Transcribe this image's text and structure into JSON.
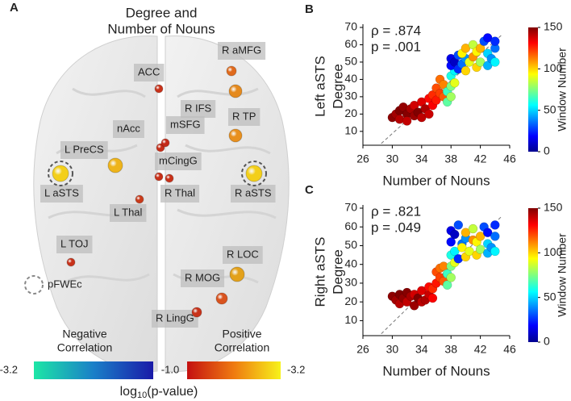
{
  "brain": {
    "panel_label": "A",
    "title_lines": [
      "Degree and",
      "Number of Nouns"
    ],
    "nodes": [
      {
        "label": "R aMFG",
        "color": "#e06a1c"
      },
      {
        "label": "ACC",
        "color": "#c8321a"
      },
      {
        "label": "R IFS",
        "color": "#e58a1e"
      },
      {
        "label": "nAcc",
        "color": "#c62d18"
      },
      {
        "label": "mSFG",
        "color": "#c42a18"
      },
      {
        "label": "R TP",
        "color": "#e8901e"
      },
      {
        "label": "L PreCS",
        "color": "#eeb41a",
        "pfwe": false
      },
      {
        "label": "mCingG",
        "color": "#c83018"
      },
      {
        "label": "L aSTS",
        "color": "#f3cf1a",
        "pfwe": true
      },
      {
        "label": "R aSTS",
        "color": "#f3cf1a",
        "pfwe": true
      },
      {
        "label": "R Thal",
        "color": "#c83018"
      },
      {
        "label": "L Thal",
        "color": "#c93a1a"
      },
      {
        "label": "L TOJ",
        "color": "#c8321a"
      },
      {
        "label": "R LOC",
        "color": "#e3a11a"
      },
      {
        "label": "R MOG",
        "color": "#d9531e"
      },
      {
        "label": "R LingG",
        "color": "#c8321a"
      }
    ],
    "pfwe_legend": "pFWEc",
    "colorbar": {
      "negative_lines": [
        "Negative",
        "Correlation"
      ],
      "positive_lines": [
        "Positive",
        "Correlation"
      ],
      "tick_labels": [
        "-3.2",
        "-1.0",
        "-3.2"
      ],
      "label_parts": [
        "log",
        "10",
        "(p-value)"
      ]
    }
  },
  "chart_data": [
    {
      "type": "scatter",
      "panel_label": "B",
      "ylabel_lines": [
        "Left aSTS",
        "Degree"
      ],
      "xlabel": "Number of Nouns",
      "annotations": [
        "ρ = .874",
        "p = .001"
      ],
      "xlim": [
        26,
        46
      ],
      "xticks": [
        26,
        30,
        34,
        38,
        42,
        46
      ],
      "ylim": [
        2,
        70
      ],
      "yticks": [
        10,
        20,
        30,
        40,
        50,
        60,
        70
      ],
      "fit_line": {
        "x": [
          28.5,
          45
        ],
        "y": [
          3,
          66
        ]
      },
      "colorbar_label": "Window Number",
      "clim": [
        0,
        150
      ],
      "cticks": [
        0,
        50,
        100,
        150
      ],
      "colormap": "jet",
      "x": [
        30,
        30.5,
        31,
        31,
        31.5,
        32,
        32,
        32.5,
        33,
        33,
        33.5,
        34,
        34,
        34.5,
        35,
        35,
        35.5,
        35.5,
        36,
        36,
        36.5,
        36.5,
        37,
        37,
        37.5,
        37.5,
        38,
        38,
        38,
        38.5,
        38.5,
        38,
        38,
        38.5,
        39,
        39,
        39.5,
        40,
        39.5,
        40,
        40,
        40.5,
        41,
        41,
        41.5,
        41.5,
        42,
        42,
        42.5,
        43,
        43,
        43,
        43.5,
        44,
        44,
        44
      ],
      "y": [
        18,
        20,
        22,
        17,
        24,
        20,
        16,
        23,
        19,
        25,
        21,
        18,
        27,
        23,
        20,
        29,
        31,
        25,
        28,
        35,
        32,
        40,
        30,
        37,
        27,
        33,
        30,
        36,
        42,
        38,
        45,
        48,
        52,
        50,
        46,
        54,
        49,
        52,
        55,
        45,
        58,
        50,
        53,
        60,
        47,
        56,
        50,
        58,
        62,
        48,
        55,
        64,
        52,
        58,
        62,
        50
      ],
      "c": [
        148,
        145,
        150,
        142,
        147,
        149,
        140,
        144,
        146,
        138,
        150,
        141,
        136,
        143,
        139,
        130,
        125,
        132,
        128,
        120,
        122,
        115,
        118,
        112,
        70,
        65,
        80,
        75,
        60,
        90,
        55,
        20,
        15,
        10,
        25,
        30,
        35,
        40,
        95,
        100,
        105,
        90,
        110,
        85,
        100,
        95,
        80,
        105,
        30,
        45,
        50,
        20,
        40,
        35,
        25,
        55
      ]
    },
    {
      "type": "scatter",
      "panel_label": "C",
      "ylabel_lines": [
        "Right aSTS",
        "Degree"
      ],
      "xlabel": "Number of Nouns",
      "annotations": [
        "ρ = .821",
        "p = .049"
      ],
      "xlim": [
        26,
        46
      ],
      "xticks": [
        26,
        30,
        34,
        38,
        42,
        46
      ],
      "ylim": [
        2,
        70
      ],
      "yticks": [
        10,
        20,
        30,
        40,
        50,
        60,
        70
      ],
      "fit_line": {
        "x": [
          28.5,
          45
        ],
        "y": [
          3,
          66
        ]
      },
      "colorbar_label": "Window Number",
      "clim": [
        0,
        150
      ],
      "cticks": [
        0,
        50,
        100,
        150
      ],
      "colormap": "jet",
      "x": [
        30,
        30.5,
        31,
        31,
        31.5,
        32,
        32,
        32.5,
        33,
        33,
        33.5,
        34,
        34,
        34.5,
        35,
        35,
        35.5,
        35.5,
        36,
        36,
        36.5,
        36.5,
        37,
        37,
        37.5,
        37.5,
        38,
        38,
        38,
        38.5,
        38.5,
        38,
        38,
        38.5,
        39,
        39,
        39.5,
        40,
        39.5,
        40,
        40,
        40.5,
        41,
        41,
        41.5,
        41.5,
        42,
        42,
        42.5,
        43,
        43,
        43,
        43.5,
        44,
        44,
        44
      ],
      "y": [
        23,
        21,
        24,
        19,
        22,
        25,
        20,
        23,
        18,
        24,
        22,
        20,
        26,
        21,
        24,
        28,
        27,
        22,
        30,
        36,
        33,
        38,
        31,
        39,
        29,
        35,
        33,
        39,
        45,
        41,
        47,
        52,
        58,
        56,
        43,
        61,
        51,
        54,
        49,
        44,
        57,
        47,
        53,
        59,
        45,
        52,
        48,
        55,
        60,
        46,
        51,
        57,
        49,
        55,
        61,
        47
      ],
      "c": [
        148,
        145,
        150,
        142,
        147,
        149,
        140,
        144,
        146,
        138,
        150,
        141,
        136,
        143,
        139,
        130,
        125,
        132,
        128,
        120,
        122,
        115,
        118,
        112,
        70,
        65,
        80,
        75,
        60,
        90,
        55,
        20,
        15,
        10,
        25,
        30,
        35,
        40,
        95,
        100,
        105,
        90,
        110,
        85,
        100,
        95,
        80,
        105,
        30,
        45,
        50,
        20,
        40,
        35,
        25,
        55
      ]
    }
  ]
}
